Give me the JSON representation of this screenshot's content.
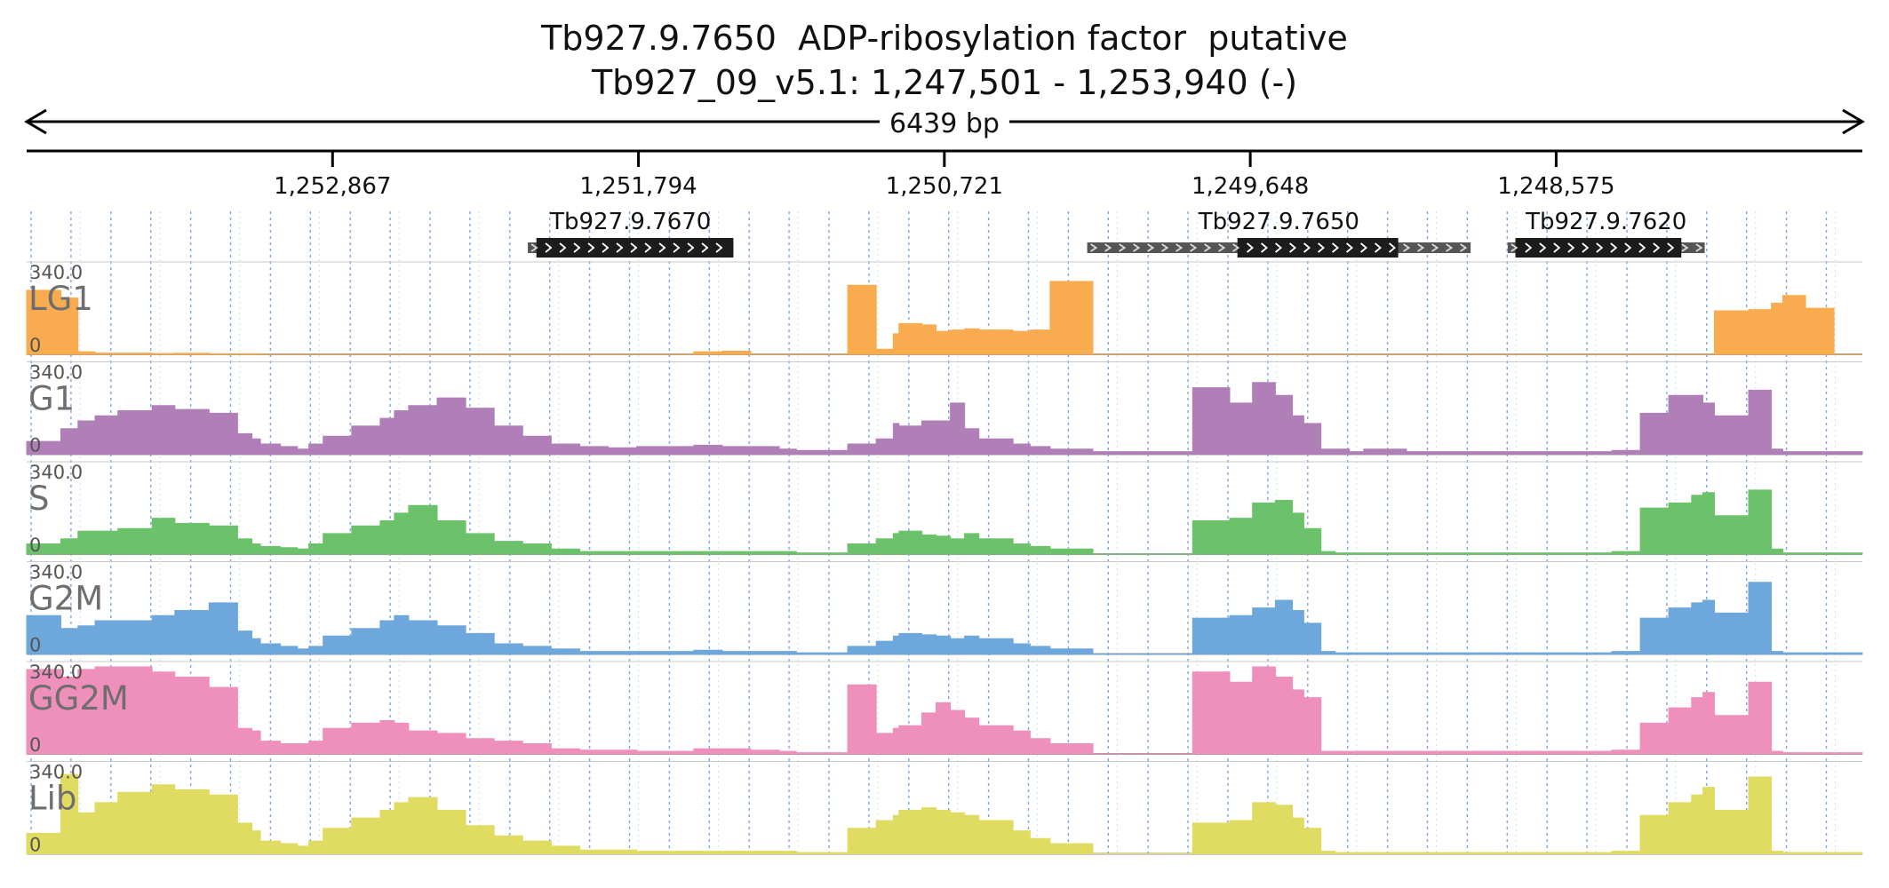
{
  "title_line1": "Tb927.9.7650  ADP-ribosylation factor  putative",
  "title_line2": "Tb927_09_v5.1: 1,247,501 - 1,253,940 (-)",
  "span_label": "6439 bp",
  "ticks": [
    "1,252,867",
    "1,251,794",
    "1,250,721",
    "1,249,648",
    "1,248,575"
  ],
  "genes": [
    {
      "name": "Tb927.9.7670",
      "start": 1252182,
      "end": 1251461,
      "cds_start": 1252152,
      "cds_end": 1251461,
      "strand": "-"
    },
    {
      "name": "Tb927.9.7650",
      "start": 1250220,
      "end": 1248875,
      "cds_start": 1249693,
      "cds_end": 1249129,
      "strand": "-"
    },
    {
      "name": "Tb927.9.7620",
      "start": 1248745,
      "end": 1248054,
      "cds_start": 1248718,
      "cds_end": 1248136,
      "strand": "-"
    }
  ],
  "colors": {
    "LG1": "#f8ac4f",
    "G1": "#b07fb8",
    "S": "#6cc16b",
    "G2M": "#6ea7dc",
    "GG2M": "#ef8fbb",
    "Lib": "#e0dc62"
  },
  "chart_data": {
    "type": "area",
    "x_domain": [
      1253940,
      1247501
    ],
    "x_axis": "genomic coordinate (bp), reverse strand",
    "ylim": [
      0,
      340
    ],
    "track_max_label": "340.0",
    "track_min_label": "0",
    "gridlines": "dotted vertical",
    "x": [
      1253940,
      1253820,
      1253760,
      1253700,
      1253620,
      1253500,
      1253420,
      1253300,
      1253200,
      1253150,
      1253120,
      1253050,
      1252990,
      1252950,
      1252900,
      1252800,
      1252700,
      1252650,
      1252600,
      1252500,
      1252400,
      1252300,
      1252200,
      1252100,
      1252000,
      1251900,
      1251800,
      1251700,
      1251600,
      1251500,
      1251400,
      1251300,
      1251240,
      1251150,
      1251060,
      1250960,
      1250900,
      1250880,
      1250800,
      1250750,
      1250700,
      1250650,
      1250600,
      1250480,
      1250420,
      1250350,
      1250200,
      1250100,
      1249980,
      1249850,
      1249720,
      1249640,
      1249560,
      1249500,
      1249460,
      1249400,
      1249350,
      1249300,
      1249250,
      1249100,
      1248900,
      1248800,
      1248700,
      1248600,
      1248520,
      1248450,
      1248380,
      1248280,
      1248180,
      1248100,
      1248060,
      1248020,
      1247900,
      1247820,
      1247780,
      1247700,
      1247600,
      1247501
    ],
    "series": [
      {
        "name": "LG1",
        "values": [
          250,
          220,
          10,
          5,
          5,
          3,
          4,
          2,
          2,
          2,
          0,
          0,
          0,
          0,
          0,
          0,
          0,
          0,
          0,
          0,
          0,
          0,
          0,
          0,
          0,
          0,
          0,
          0,
          10,
          12,
          0,
          0,
          0,
          0,
          270,
          20,
          80,
          120,
          115,
          90,
          95,
          100,
          95,
          90,
          95,
          285,
          0,
          0,
          0,
          0,
          0,
          0,
          0,
          0,
          0,
          0,
          0,
          0,
          0,
          0,
          0,
          0,
          0,
          0,
          0,
          0,
          0,
          0,
          0,
          0,
          0,
          170,
          175,
          200,
          230,
          180,
          0,
          0
        ]
      },
      {
        "name": "G1",
        "values": [
          50,
          100,
          130,
          150,
          170,
          190,
          175,
          160,
          80,
          60,
          40,
          30,
          20,
          40,
          70,
          110,
          140,
          170,
          190,
          220,
          180,
          110,
          70,
          40,
          30,
          25,
          30,
          30,
          35,
          30,
          30,
          20,
          15,
          15,
          40,
          60,
          120,
          110,
          130,
          130,
          200,
          100,
          60,
          40,
          30,
          20,
          10,
          10,
          10,
          260,
          200,
          280,
          230,
          150,
          120,
          20,
          20,
          10,
          20,
          10,
          10,
          10,
          10,
          10,
          10,
          10,
          15,
          160,
          230,
          230,
          200,
          150,
          250,
          20,
          10,
          10,
          10,
          0
        ]
      },
      {
        "name": "S",
        "values": [
          40,
          60,
          90,
          90,
          100,
          140,
          120,
          110,
          60,
          40,
          30,
          25,
          20,
          40,
          80,
          110,
          130,
          160,
          190,
          130,
          80,
          50,
          40,
          20,
          10,
          10,
          10,
          10,
          10,
          10,
          10,
          10,
          5,
          5,
          40,
          60,
          80,
          90,
          75,
          70,
          60,
          80,
          60,
          40,
          30,
          20,
          0,
          0,
          0,
          130,
          140,
          200,
          210,
          160,
          100,
          10,
          5,
          5,
          5,
          5,
          5,
          5,
          5,
          5,
          5,
          5,
          10,
          180,
          200,
          230,
          240,
          150,
          250,
          20,
          5,
          5,
          5,
          0
        ]
      },
      {
        "name": "G2M",
        "values": [
          150,
          100,
          110,
          130,
          130,
          150,
          170,
          200,
          90,
          60,
          40,
          30,
          20,
          30,
          70,
          100,
          130,
          150,
          130,
          110,
          80,
          40,
          30,
          20,
          10,
          10,
          10,
          10,
          15,
          10,
          10,
          10,
          5,
          5,
          30,
          50,
          70,
          80,
          75,
          70,
          60,
          70,
          60,
          40,
          30,
          20,
          0,
          0,
          0,
          140,
          150,
          180,
          210,
          170,
          120,
          10,
          5,
          5,
          5,
          5,
          5,
          5,
          5,
          5,
          5,
          5,
          10,
          140,
          180,
          200,
          210,
          160,
          280,
          10,
          5,
          5,
          5,
          0
        ]
      },
      {
        "name": "GG2M",
        "values": [
          330,
          300,
          330,
          340,
          340,
          320,
          300,
          260,
          100,
          90,
          50,
          40,
          40,
          50,
          100,
          120,
          130,
          120,
          90,
          80,
          60,
          50,
          40,
          20,
          15,
          15,
          10,
          10,
          20,
          20,
          15,
          10,
          5,
          5,
          270,
          80,
          100,
          110,
          160,
          200,
          170,
          140,
          110,
          90,
          60,
          40,
          0,
          0,
          0,
          320,
          280,
          340,
          300,
          250,
          220,
          10,
          10,
          10,
          10,
          10,
          10,
          10,
          10,
          10,
          10,
          10,
          15,
          120,
          180,
          220,
          240,
          150,
          280,
          10,
          5,
          5,
          5,
          0
        ]
      },
      {
        "name": "Lib",
        "values": [
          80,
          310,
          160,
          200,
          240,
          270,
          250,
          230,
          120,
          90,
          50,
          40,
          30,
          50,
          100,
          140,
          170,
          200,
          220,
          170,
          110,
          70,
          50,
          30,
          15,
          15,
          10,
          10,
          10,
          10,
          10,
          10,
          5,
          5,
          100,
          130,
          150,
          170,
          180,
          170,
          160,
          150,
          130,
          90,
          60,
          40,
          0,
          0,
          0,
          120,
          130,
          200,
          190,
          140,
          100,
          10,
          5,
          5,
          5,
          5,
          5,
          5,
          5,
          5,
          5,
          5,
          10,
          150,
          200,
          230,
          260,
          170,
          300,
          10,
          5,
          5,
          5,
          0
        ]
      }
    ]
  }
}
